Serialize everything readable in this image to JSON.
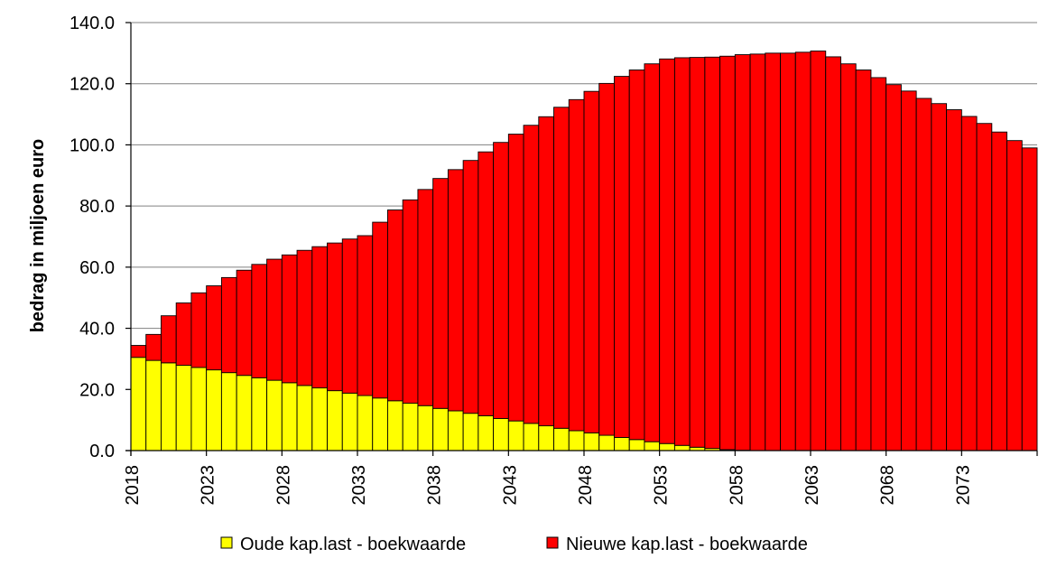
{
  "colors": {
    "old": "#ffff00",
    "new": "#ff0000",
    "outline": "#000000",
    "grid": "#808080",
    "background": "#ffffff"
  },
  "chart_data": {
    "type": "bar",
    "stacked": true,
    "title": "",
    "xlabel": "",
    "ylabel": "bedrag in miljoen euro",
    "ylim": [
      0,
      140
    ],
    "yticks": [
      "0.0",
      "20.0",
      "40.0",
      "60.0",
      "80.0",
      "100.0",
      "120.0",
      "140.0"
    ],
    "xticks": [
      "2018",
      "2023",
      "2028",
      "2033",
      "2038",
      "2043",
      "2048",
      "2053",
      "2058",
      "2063",
      "2068",
      "2073"
    ],
    "grid": true,
    "legend_position": "bottom",
    "x": [
      2018,
      2019,
      2020,
      2021,
      2022,
      2023,
      2024,
      2025,
      2026,
      2027,
      2028,
      2029,
      2030,
      2031,
      2032,
      2033,
      2034,
      2035,
      2036,
      2037,
      2038,
      2039,
      2040,
      2041,
      2042,
      2043,
      2044,
      2045,
      2046,
      2047,
      2048,
      2049,
      2050,
      2051,
      2052,
      2053,
      2054,
      2055,
      2056,
      2057,
      2058,
      2059,
      2060,
      2061,
      2062,
      2063,
      2064,
      2065,
      2066,
      2067,
      2068,
      2069,
      2070,
      2071,
      2072,
      2073,
      2074,
      2075,
      2076,
      2077
    ],
    "series": [
      {
        "name": "Oude kap.last - boekwaarde",
        "color_key": "old",
        "values": [
          30.5,
          29.5,
          28.7,
          27.9,
          27.2,
          26.4,
          25.5,
          24.6,
          23.8,
          23.0,
          22.2,
          21.3,
          20.5,
          19.6,
          18.8,
          18.0,
          17.2,
          16.3,
          15.5,
          14.7,
          13.8,
          13.0,
          12.2,
          11.4,
          10.5,
          9.7,
          8.9,
          8.1,
          7.3,
          6.5,
          5.8,
          5.0,
          4.3,
          3.6,
          2.9,
          2.3,
          1.7,
          1.1,
          0.7,
          0.3,
          0.1,
          0,
          0,
          0,
          0,
          0,
          0,
          0,
          0,
          0,
          0,
          0,
          0,
          0,
          0,
          0,
          0,
          0,
          0,
          0
        ]
      },
      {
        "name": "Nieuwe kap.last - boekwaarde",
        "color_key": "new",
        "values": [
          3.9,
          8.5,
          15.4,
          20.4,
          24.4,
          27.5,
          31.1,
          34.4,
          37.1,
          39.6,
          41.8,
          44.2,
          46.2,
          48.3,
          50.4,
          52.3,
          57.5,
          62.4,
          66.5,
          70.7,
          75.2,
          78.9,
          82.7,
          86.3,
          90.3,
          93.8,
          97.5,
          101.1,
          105.0,
          108.3,
          111.7,
          115.1,
          118.1,
          120.9,
          123.6,
          125.8,
          126.8,
          127.5,
          128.0,
          128.7,
          129.4,
          129.7,
          130.0,
          130.0,
          130.3,
          130.7,
          128.8,
          126.5,
          124.5,
          122.0,
          119.7,
          117.6,
          115.2,
          113.5,
          111.5,
          109.3,
          107.0,
          104.2,
          101.4,
          99.0
        ]
      }
    ]
  }
}
